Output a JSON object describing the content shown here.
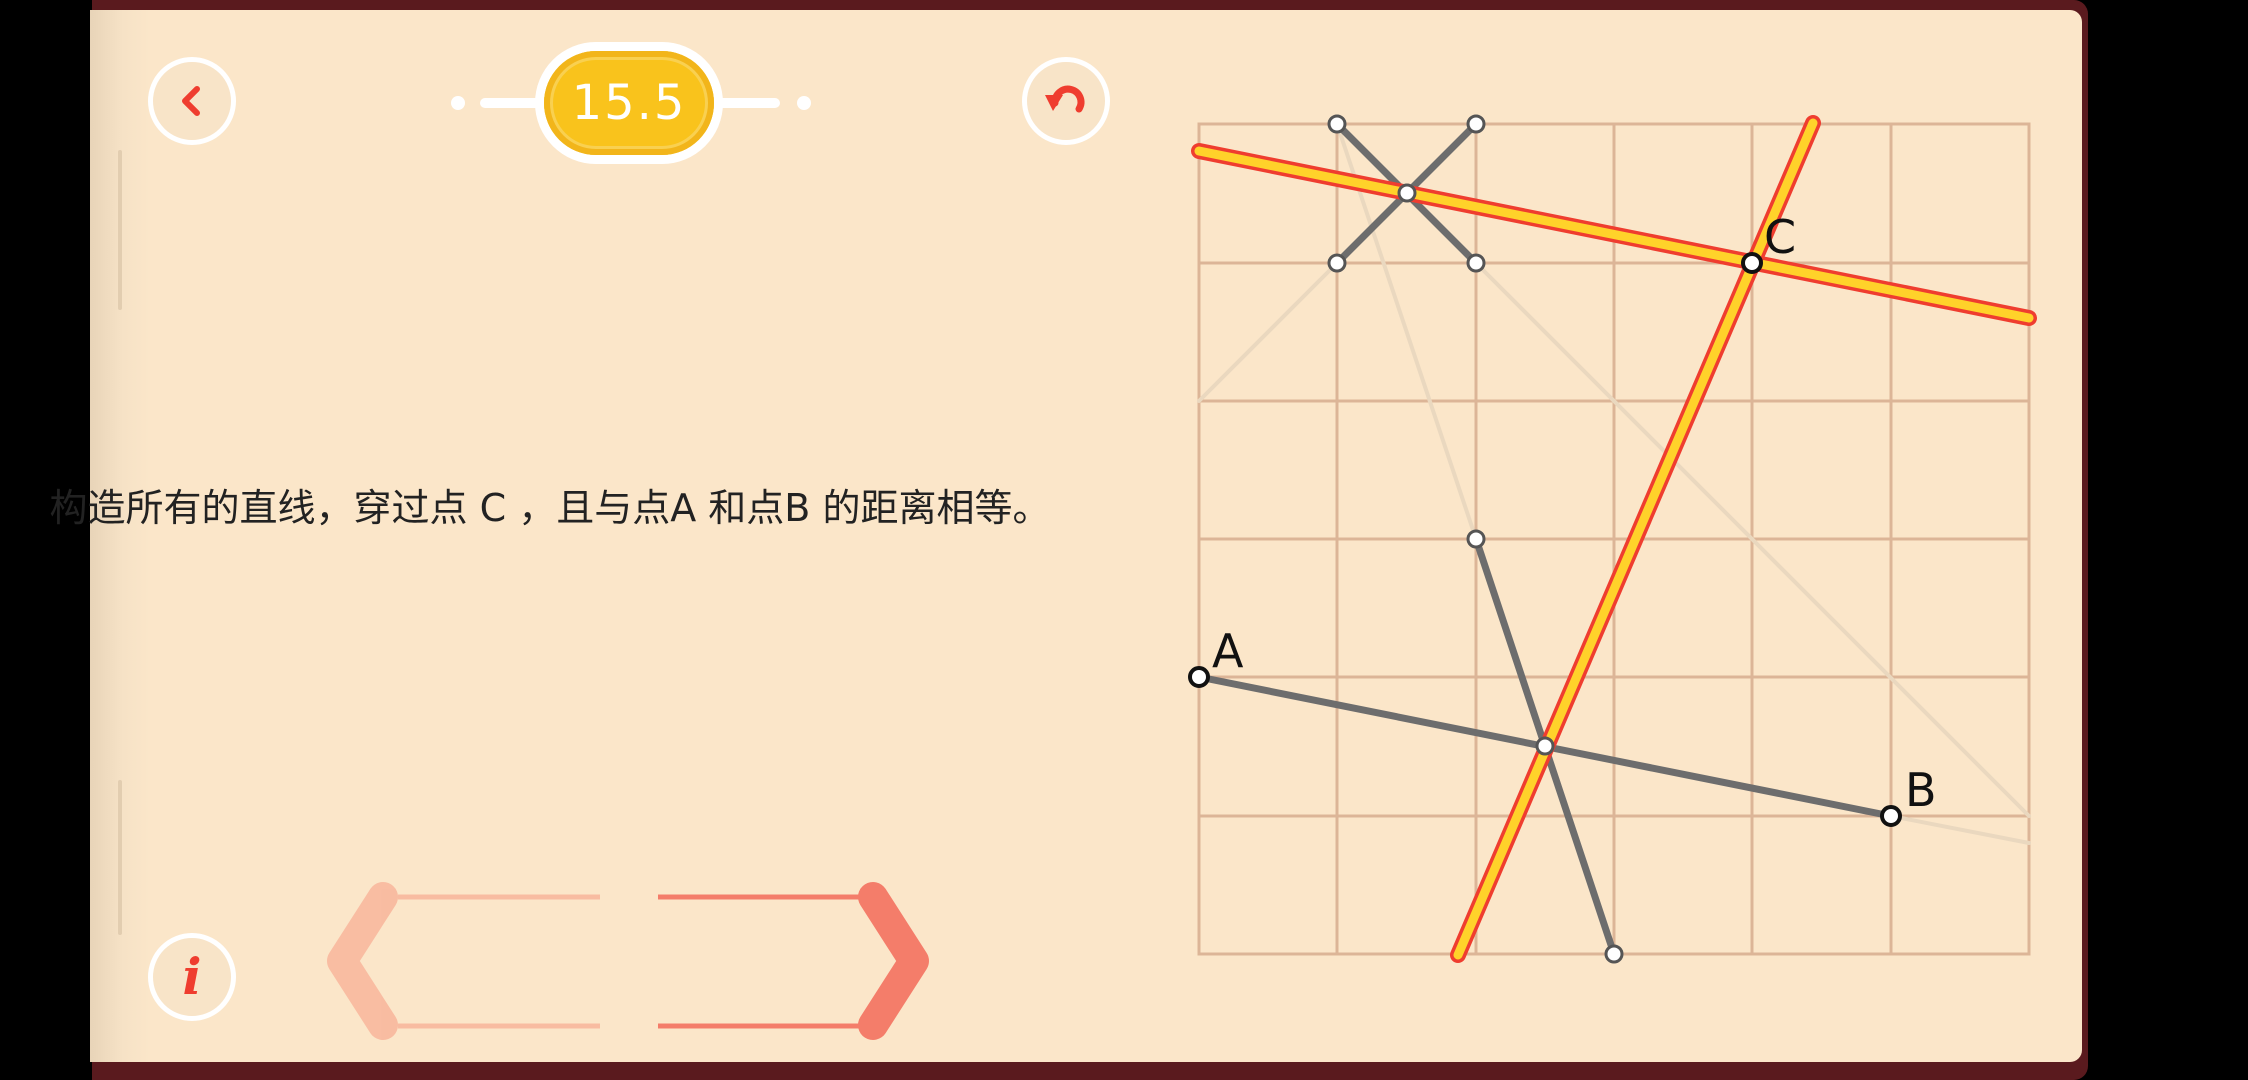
{
  "level": {
    "number": "15.5"
  },
  "task": {
    "text": "构造所有的直线，穿过点 C ，且与点A 和点B 的距离相等。"
  },
  "buttons": {
    "back_icon": "chevron-left-icon",
    "undo_icon": "undo-icon",
    "info_icon": "info-icon",
    "info_label": "i"
  },
  "points": {
    "a_label": "A",
    "b_label": "B",
    "c_label": "C"
  },
  "colors": {
    "page": "#fbe6c9",
    "grid": "#dcb597",
    "accent_red": "#ef3d2f",
    "line_yellow": "#ffd22a",
    "segment_gray": "#6d6d6d"
  }
}
